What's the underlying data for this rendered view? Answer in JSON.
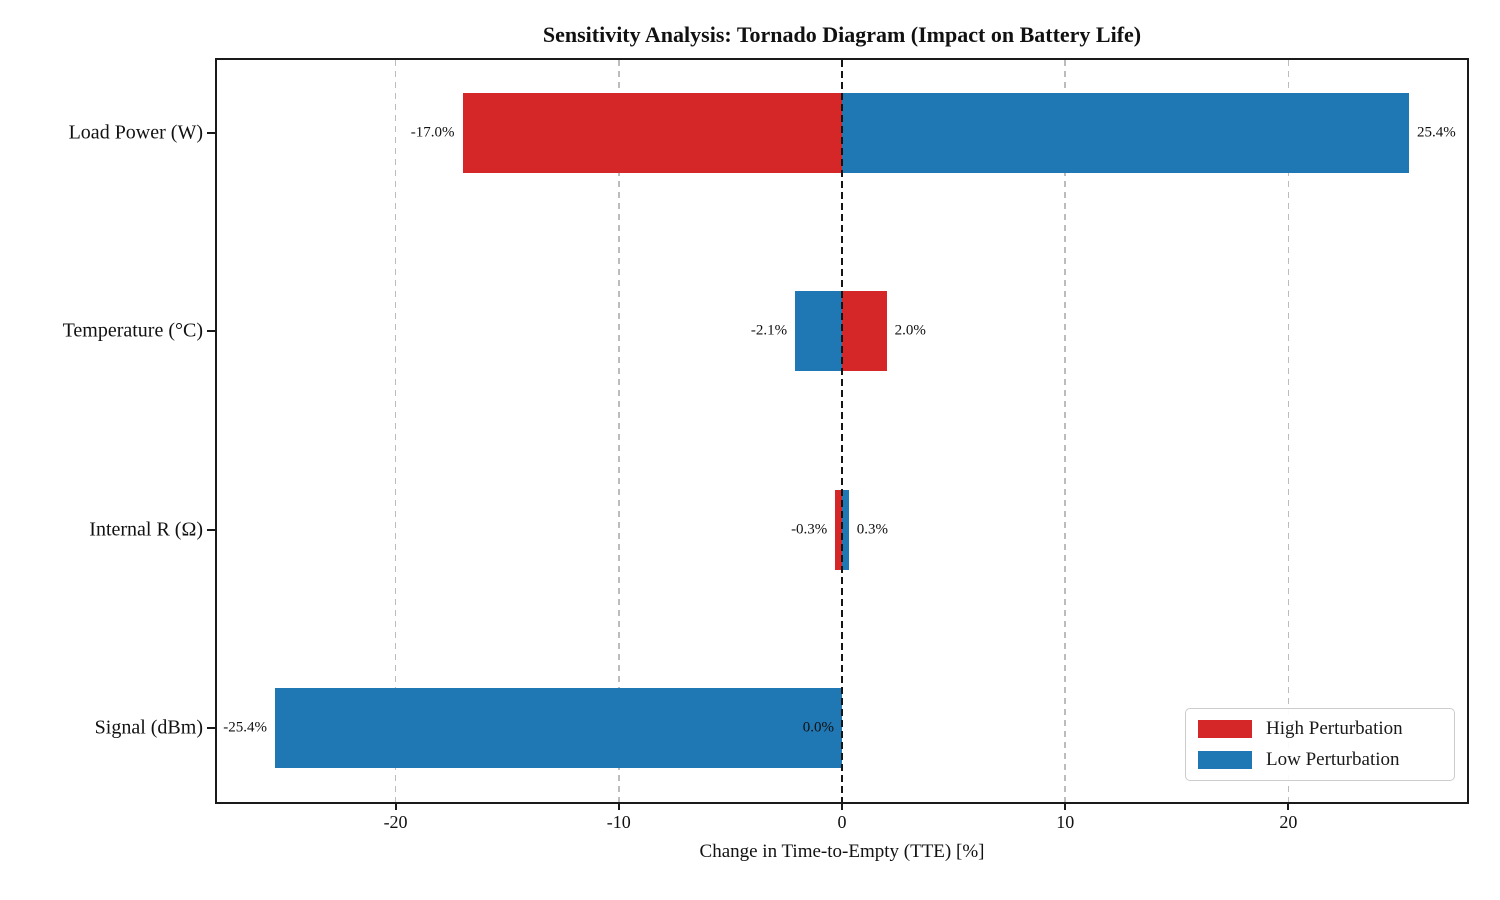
{
  "chart_data": {
    "type": "bar",
    "variant": "tornado",
    "orientation": "horizontal",
    "title": "Sensitivity Analysis: Tornado Diagram (Impact on Battery Life)",
    "xlabel": "Change in Time-to-Empty (TTE) [%]",
    "ylabel": "",
    "categories": [
      "Load Power (W)",
      "Temperature (°C)",
      "Internal R (Ω)",
      "Signal (dBm)"
    ],
    "series": [
      {
        "name": "High Perturbation",
        "color": "#d62728",
        "values": [
          -17.0,
          2.0,
          -0.3,
          0.0
        ],
        "labels": [
          "-17.0%",
          "2.0%",
          "-0.3%",
          "0.0%"
        ]
      },
      {
        "name": "Low Perturbation",
        "color": "#1f77b4",
        "values": [
          25.4,
          -2.1,
          0.3,
          -25.4
        ],
        "labels": [
          "25.4%",
          "-2.1%",
          "0.3%",
          "-25.4%"
        ]
      }
    ],
    "xlim": [
      -28,
      28
    ],
    "xticks": [
      -20,
      -10,
      0,
      10,
      20
    ],
    "xtick_labels": [
      "-20",
      "-10",
      "0",
      "10",
      "20"
    ],
    "grid": {
      "axis": "x",
      "style": "dashed",
      "color": "#bcbcbc"
    },
    "zero_line": {
      "x": 0,
      "style": "dashed",
      "color": "#000000"
    },
    "legend": {
      "position": "lower-right",
      "entries": [
        "High Perturbation",
        "Low Perturbation"
      ]
    }
  }
}
